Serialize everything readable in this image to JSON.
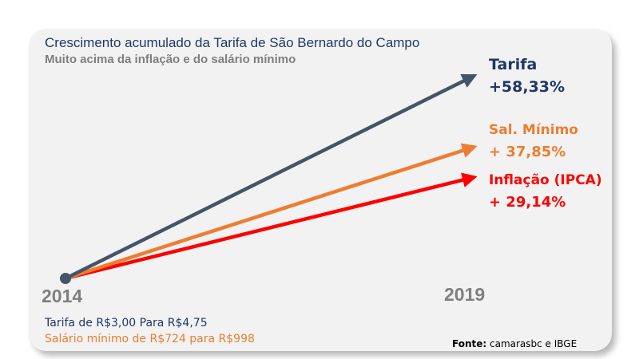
{
  "chart_data": {
    "type": "line",
    "title": "Crescimento acumulado da Tarifa de São Bernardo do Campo",
    "subtitle": "Muito acima da inflação e do salário mínimo",
    "x": [
      "2014",
      "2019"
    ],
    "series": [
      {
        "name": "Tarifa",
        "values": [
          0,
          58.33
        ],
        "value_label": "+58,33%",
        "color": "#44546a",
        "label_color": "#1f3864"
      },
      {
        "name": "Sal. Mínimo",
        "values": [
          0,
          37.85
        ],
        "value_label": "+ 37,85%",
        "color": "#ed7d31",
        "label_color": "#ed7d31"
      },
      {
        "name": "Inflação (IPCA)",
        "values": [
          0,
          29.14
        ],
        "value_label": "+ 29,14%",
        "color": "#ff0000",
        "label_color": "#ff0000"
      }
    ],
    "origin_marker_color": "#44546a",
    "notes": [
      {
        "text": "Tarifa de R$3,00 Para R$4,75",
        "color": "#1f3864"
      },
      {
        "text": "Salário mínimo de R$724 para R$998",
        "color": "#ed7d31"
      }
    ],
    "source_label": "Fonte:",
    "source_text": " camarasbc e IBGE"
  }
}
